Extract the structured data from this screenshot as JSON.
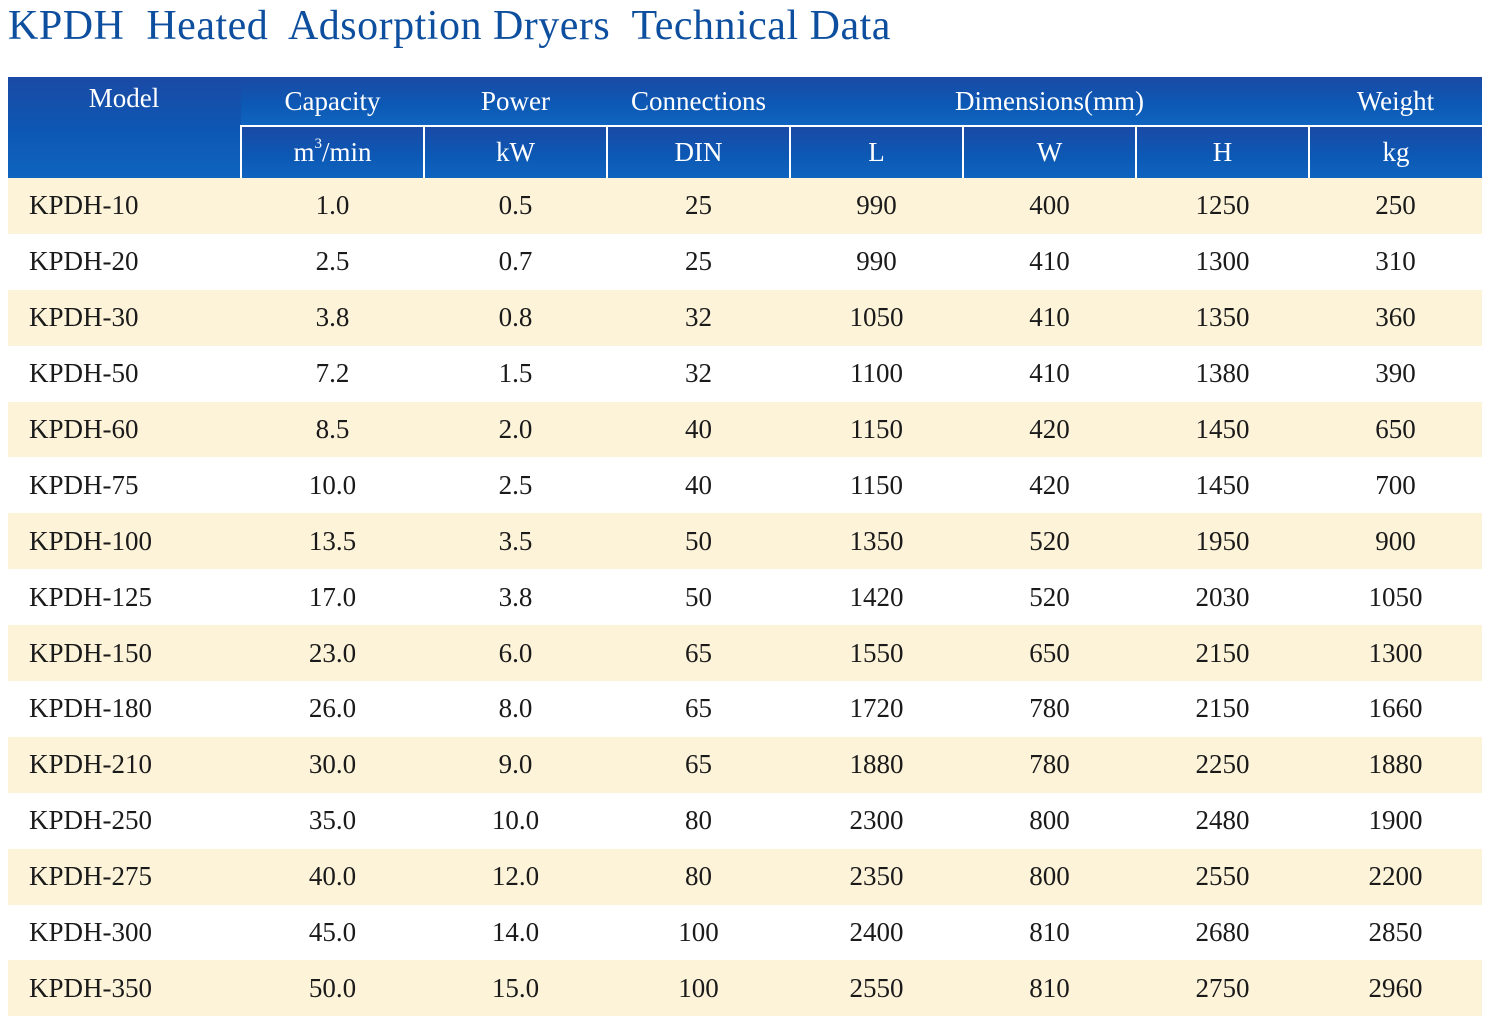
{
  "title": "KPDH  Heated  Adsorption Dryers  Technical Data",
  "header": {
    "model": "Model",
    "capacity": "Capacity",
    "power": "Power",
    "connections": "Connections",
    "dimensions": "Dimensions(mm)",
    "weight": "Weight",
    "capacity_unit_base": "m",
    "capacity_unit_sup": "3",
    "capacity_unit_rest": "/min",
    "power_unit": "kW",
    "connections_unit": "DIN",
    "dim_l": "L",
    "dim_w": "W",
    "dim_h": "H",
    "weight_unit": "kg"
  },
  "rows": [
    {
      "model": "KPDH-10",
      "capacity": "1.0",
      "power": "0.5",
      "din": "25",
      "l": "990",
      "w": "400",
      "h": "1250",
      "kg": "250"
    },
    {
      "model": "KPDH-20",
      "capacity": "2.5",
      "power": "0.7",
      "din": "25",
      "l": "990",
      "w": "410",
      "h": "1300",
      "kg": "310"
    },
    {
      "model": "KPDH-30",
      "capacity": "3.8",
      "power": "0.8",
      "din": "32",
      "l": "1050",
      "w": "410",
      "h": "1350",
      "kg": "360"
    },
    {
      "model": "KPDH-50",
      "capacity": "7.2",
      "power": "1.5",
      "din": "32",
      "l": "1100",
      "w": "410",
      "h": "1380",
      "kg": "390"
    },
    {
      "model": "KPDH-60",
      "capacity": "8.5",
      "power": "2.0",
      "din": "40",
      "l": "1150",
      "w": "420",
      "h": "1450",
      "kg": "650"
    },
    {
      "model": "KPDH-75",
      "capacity": "10.0",
      "power": "2.5",
      "din": "40",
      "l": "1150",
      "w": "420",
      "h": "1450",
      "kg": "700"
    },
    {
      "model": "KPDH-100",
      "capacity": "13.5",
      "power": "3.5",
      "din": "50",
      "l": "1350",
      "w": "520",
      "h": "1950",
      "kg": "900"
    },
    {
      "model": "KPDH-125",
      "capacity": "17.0",
      "power": "3.8",
      "din": "50",
      "l": "1420",
      "w": "520",
      "h": "2030",
      "kg": "1050"
    },
    {
      "model": "KPDH-150",
      "capacity": "23.0",
      "power": "6.0",
      "din": "65",
      "l": "1550",
      "w": "650",
      "h": "2150",
      "kg": "1300"
    },
    {
      "model": "KPDH-180",
      "capacity": "26.0",
      "power": "8.0",
      "din": "65",
      "l": "1720",
      "w": "780",
      "h": "2150",
      "kg": "1660"
    },
    {
      "model": "KPDH-210",
      "capacity": "30.0",
      "power": "9.0",
      "din": "65",
      "l": "1880",
      "w": "780",
      "h": "2250",
      "kg": "1880"
    },
    {
      "model": "KPDH-250",
      "capacity": "35.0",
      "power": "10.0",
      "din": "80",
      "l": "2300",
      "w": "800",
      "h": "2480",
      "kg": "1900"
    },
    {
      "model": "KPDH-275",
      "capacity": "40.0",
      "power": "12.0",
      "din": "80",
      "l": "2350",
      "w": "800",
      "h": "2550",
      "kg": "2200"
    },
    {
      "model": "KPDH-300",
      "capacity": "45.0",
      "power": "14.0",
      "din": "100",
      "l": "2400",
      "w": "810",
      "h": "2680",
      "kg": "2850"
    },
    {
      "model": "KPDH-350",
      "capacity": "50.0",
      "power": "15.0",
      "din": "100",
      "l": "2550",
      "w": "810",
      "h": "2750",
      "kg": "2960"
    }
  ]
}
